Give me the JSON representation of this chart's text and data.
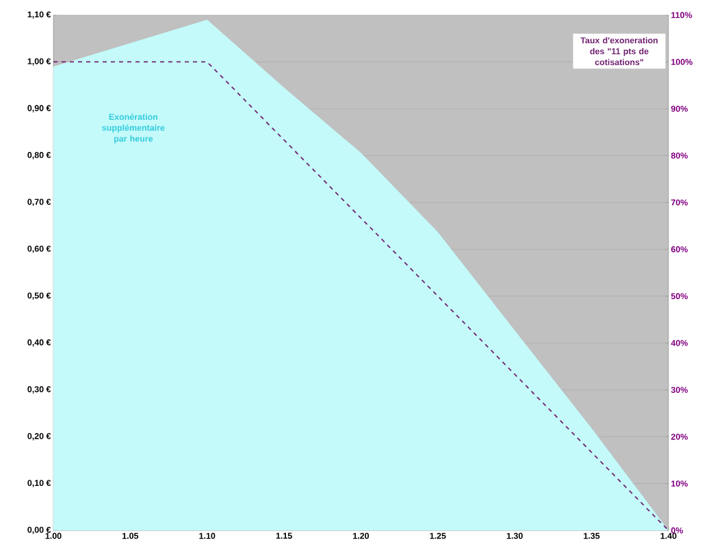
{
  "chart_data": {
    "type": "area",
    "xlim": [
      1.0,
      1.4
    ],
    "ylim": [
      0,
      1.1
    ],
    "y2lim": [
      0,
      110
    ],
    "grid": "y",
    "line_style": "dashed",
    "xticks": [
      {
        "value": 1.0,
        "label": "1.00"
      },
      {
        "value": 1.05,
        "label": "1.05"
      },
      {
        "value": 1.1,
        "label": "1.10"
      },
      {
        "value": 1.15,
        "label": "1.15"
      },
      {
        "value": 1.2,
        "label": "1.20"
      },
      {
        "value": 1.25,
        "label": "1.25"
      },
      {
        "value": 1.3,
        "label": "1.30"
      },
      {
        "value": 1.35,
        "label": "1.35"
      },
      {
        "value": 1.4,
        "label": "1.40"
      }
    ],
    "yticks": [
      {
        "value": 0,
        "label": "0,00 €"
      },
      {
        "value": 0.1,
        "label": "0,10 €"
      },
      {
        "value": 0.2,
        "label": "0,20 €"
      },
      {
        "value": 0.3,
        "label": "0,30 €"
      },
      {
        "value": 0.4,
        "label": "0,40 €"
      },
      {
        "value": 0.5,
        "label": "0,50 €"
      },
      {
        "value": 0.6,
        "label": "0,60 €"
      },
      {
        "value": 0.7,
        "label": "0,70 €"
      },
      {
        "value": 0.8,
        "label": "0,80 €"
      },
      {
        "value": 0.9,
        "label": "0,90 €"
      },
      {
        "value": 1.0,
        "label": "1,00 €"
      },
      {
        "value": 1.1,
        "label": "1,10 €"
      }
    ],
    "y2ticks": [
      {
        "value": 0,
        "label": "0%"
      },
      {
        "value": 10,
        "label": "10%"
      },
      {
        "value": 20,
        "label": "20%"
      },
      {
        "value": 30,
        "label": "30%"
      },
      {
        "value": 40,
        "label": "40%"
      },
      {
        "value": 50,
        "label": "50%"
      },
      {
        "value": 60,
        "label": "60%"
      },
      {
        "value": 70,
        "label": "70%"
      },
      {
        "value": 80,
        "label": "80%"
      },
      {
        "value": 90,
        "label": "90%"
      },
      {
        "value": 100,
        "label": "100%"
      },
      {
        "value": 110,
        "label": "110%"
      }
    ],
    "series": [
      {
        "name": "Exonération supplémentaire par heure",
        "color": "#c4fafa",
        "x": [
          1.0,
          1.1,
          1.15,
          1.2,
          1.25,
          1.3,
          1.35,
          1.4
        ],
        "values": [
          0.99,
          1.09,
          0.945,
          0.806,
          0.637,
          0.427,
          0.218,
          0
        ]
      },
      {
        "name": "Taux d'exoneration des \"11 pts de cotisations\"",
        "type": "line",
        "axis": "y2",
        "color": "#702070",
        "x": [
          1.0,
          1.1,
          1.4
        ],
        "values": [
          100,
          100,
          0
        ]
      }
    ]
  }
}
